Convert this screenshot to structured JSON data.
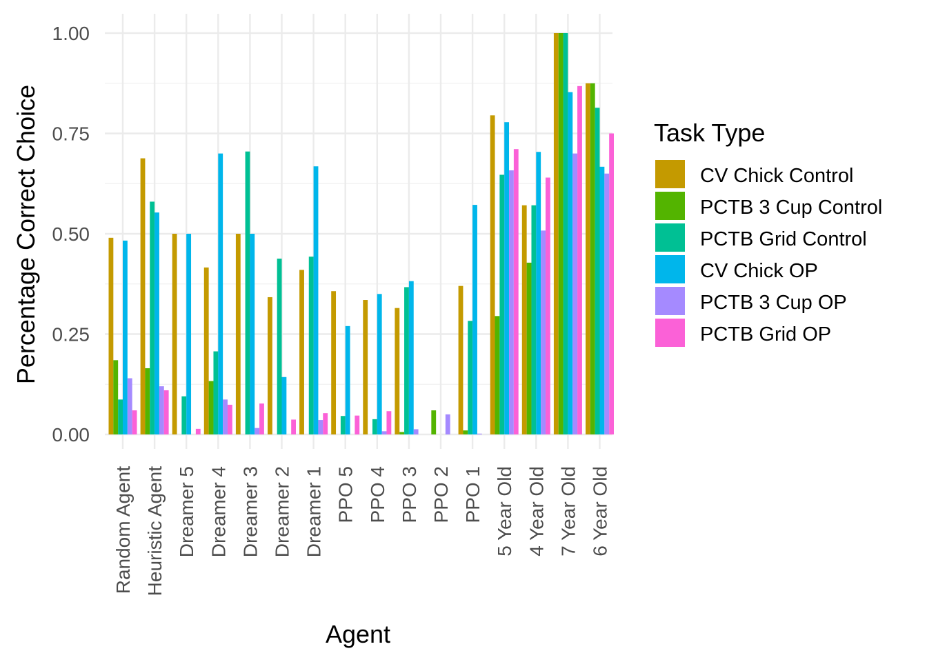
{
  "chart_data": {
    "type": "bar",
    "title": "",
    "xlabel": "Agent",
    "ylabel": "Percentage Correct Choice",
    "ylim": [
      0,
      1
    ],
    "yticks": [
      0,
      0.25,
      0.5,
      0.75,
      1.0
    ],
    "ytick_labels": [
      "0.00",
      "0.25",
      "0.50",
      "0.75",
      "1.00"
    ],
    "grid": true,
    "legend_title": "Task Type",
    "legend_position": "right",
    "categories": [
      "Random Agent",
      "Heuristic Agent",
      "Dreamer 5",
      "Dreamer 4",
      "Dreamer 3",
      "Dreamer 2",
      "Dreamer 1",
      "PPO 5",
      "PPO 4",
      "PPO 3",
      "PPO 2",
      "PPO 1",
      "5 Year Old",
      "4 Year Old",
      "7 Year Old",
      "6 Year Old"
    ],
    "series": [
      {
        "name": "CV Chick Control",
        "color": "#C49A00",
        "values": [
          0.49,
          0.688,
          0.5,
          0.416,
          0.5,
          0.342,
          0.41,
          0.357,
          0.335,
          0.315,
          0.0,
          0.37,
          0.795,
          0.571,
          1.0,
          0.875
        ]
      },
      {
        "name": "PCTB 3 Cup Control",
        "color": "#53B400",
        "values": [
          0.185,
          0.165,
          0.0,
          0.133,
          0.0,
          0.0,
          0.0,
          0.0,
          0.0,
          0.006,
          0.06,
          0.01,
          0.295,
          0.428,
          1.0,
          0.875
        ]
      },
      {
        "name": "PCTB Grid Control",
        "color": "#00C094",
        "values": [
          0.087,
          0.58,
          0.095,
          0.207,
          0.705,
          0.438,
          0.443,
          0.046,
          0.038,
          0.367,
          0.0,
          0.283,
          0.647,
          0.571,
          1.0,
          0.814
        ]
      },
      {
        "name": "CV Chick OP",
        "color": "#00B6EB",
        "values": [
          0.483,
          0.553,
          0.5,
          0.7,
          0.5,
          0.143,
          0.668,
          0.27,
          0.35,
          0.382,
          0.0,
          0.572,
          0.778,
          0.704,
          0.853,
          0.667
        ]
      },
      {
        "name": "PCTB 3 Cup OP",
        "color": "#A58AFF",
        "values": [
          0.14,
          0.12,
          0.0,
          0.087,
          0.016,
          0.0,
          0.036,
          0.0,
          0.008,
          0.013,
          0.05,
          0.002,
          0.658,
          0.508,
          0.7,
          0.65
        ]
      },
      {
        "name": "PCTB Grid OP",
        "color": "#FB61D7",
        "values": [
          0.06,
          0.11,
          0.014,
          0.074,
          0.077,
          0.037,
          0.053,
          0.047,
          0.058,
          0.0,
          0.0,
          0.0,
          0.711,
          0.64,
          0.868,
          0.75
        ]
      }
    ]
  }
}
